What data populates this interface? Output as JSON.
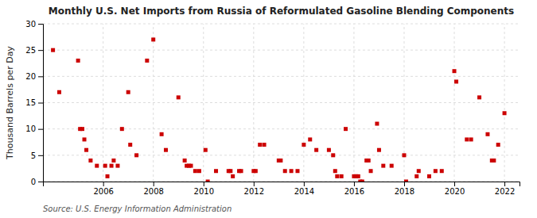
{
  "chart_data": {
    "type": "scatter",
    "title": "Monthly U.S. Net Imports from Russia of Reformulated Gasoline Blending Components",
    "ylabel": "Thousand Barrels per Day",
    "annotations": [
      "Source: U.S. Energy Information Administration"
    ],
    "color": "#cc0000",
    "marker": "square",
    "grid": true,
    "xlim": [
      2003.6,
      2022.6
    ],
    "xticks": [
      2006,
      2008,
      2010,
      2012,
      2014,
      2016,
      2018,
      2020,
      2022
    ],
    "ylim": [
      0,
      30
    ],
    "yticks": [
      0,
      5,
      10,
      15,
      20,
      25,
      30
    ],
    "x": [
      2004.0,
      2004.25,
      2005.0,
      2005.08,
      2005.17,
      2005.25,
      2005.33,
      2005.5,
      2005.75,
      2006.08,
      2006.17,
      2006.33,
      2006.42,
      2006.58,
      2006.75,
      2007.0,
      2007.08,
      2007.33,
      2007.75,
      2008.0,
      2008.33,
      2008.5,
      2009.0,
      2009.25,
      2009.33,
      2009.42,
      2009.5,
      2009.67,
      2009.83,
      2010.08,
      2010.17,
      2010.5,
      2011.0,
      2011.08,
      2011.17,
      2011.42,
      2011.5,
      2012.0,
      2012.08,
      2012.25,
      2012.42,
      2013.0,
      2013.08,
      2013.25,
      2013.5,
      2013.75,
      2014.0,
      2014.25,
      2014.5,
      2015.0,
      2015.17,
      2015.25,
      2015.33,
      2015.5,
      2015.67,
      2016.0,
      2016.08,
      2016.17,
      2016.25,
      2016.33,
      2016.5,
      2016.58,
      2016.67,
      2016.92,
      2017.0,
      2017.17,
      2017.5,
      2018.0,
      2018.08,
      2018.5,
      2018.58,
      2019.0,
      2019.25,
      2019.5,
      2020.0,
      2020.08,
      2020.5,
      2020.67,
      2021.0,
      2021.33,
      2021.5,
      2021.58,
      2021.75,
      2022.0
    ],
    "values": [
      25,
      17,
      23,
      10,
      10,
      8,
      6,
      4,
      3,
      3,
      1,
      3,
      4,
      3,
      10,
      17,
      7,
      5,
      23,
      27,
      9,
      6,
      16,
      4,
      3,
      3,
      3,
      2,
      2,
      6,
      0,
      2,
      2,
      2,
      1,
      2,
      2,
      2,
      2,
      7,
      7,
      4,
      4,
      2,
      2,
      2,
      7,
      8,
      6,
      6,
      5,
      2,
      1,
      1,
      10,
      1,
      1,
      1,
      0,
      0,
      4,
      4,
      2,
      11,
      6,
      3,
      3,
      5,
      0,
      1,
      2,
      1,
      2,
      2,
      21,
      19,
      8,
      8,
      16,
      9,
      4,
      4,
      7,
      13
    ]
  }
}
